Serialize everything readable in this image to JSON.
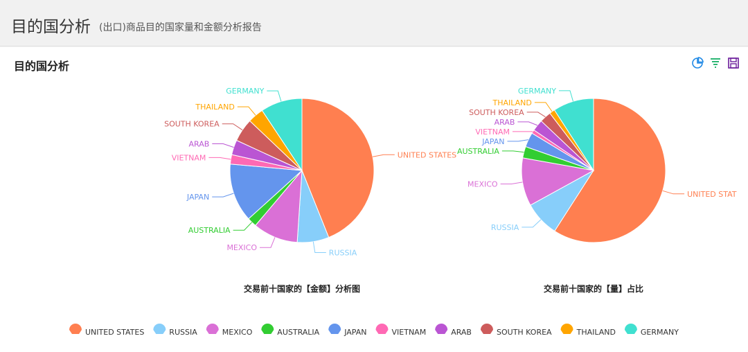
{
  "header": {
    "title": "目的国分析",
    "subtitle": "(出口)商品目的国家量和金额分析报告"
  },
  "panel": {
    "title": "目的国分析",
    "toolbar": [
      {
        "icon": "pie-chart-icon",
        "color": "#1e88e5"
      },
      {
        "icon": "filter-icon",
        "color": "#2bb673"
      },
      {
        "icon": "save-icon",
        "color": "#6a1b9a"
      }
    ]
  },
  "colors": {
    "UNITED STATES": "#ff7f50",
    "RUSSIA": "#87cefa",
    "MEXICO": "#da70d6",
    "AUSTRALIA": "#32cd32",
    "JAPAN": "#6495ed",
    "VIETNAM": "#ff69b4",
    "ARAB": "#ba55d3",
    "SOUTH KOREA": "#cd5c5c",
    "THAILAND": "#ffa500",
    "GERMANY": "#40e0d0"
  },
  "chart_data": [
    {
      "type": "pie",
      "title": "交易前十国家的【金额】分析图",
      "categories": [
        "UNITED STATES",
        "RUSSIA",
        "MEXICO",
        "AUSTRALIA",
        "JAPAN",
        "VIETNAM",
        "ARAB",
        "SOUTH KOREA",
        "THAILAND",
        "GERMANY"
      ],
      "values": [
        39.5,
        6.4,
        9.1,
        1.9,
        11.8,
        1.9,
        3.0,
        4.7,
        3.2,
        8.4
      ],
      "labels": [
        "UNITED STATES",
        "RUSSIA",
        "MEXICO",
        "AUSTRALIA",
        "JAPAN",
        "VIETNAM",
        "ARAB",
        "SOUTH KOREA",
        "THAILAND",
        "GERMANY"
      ]
    },
    {
      "type": "pie",
      "title": "交易前十国家的【量】占比",
      "categories": [
        "UNITED STATES",
        "RUSSIA",
        "MEXICO",
        "AUSTRALIA",
        "JAPAN",
        "VIETNAM",
        "ARAB",
        "SOUTH KOREA",
        "THAILAND",
        "GERMANY"
      ],
      "values": [
        57.5,
        7.7,
        10.5,
        2.5,
        3.2,
        0.8,
        2.5,
        2.5,
        1.2,
        8.9
      ],
      "labels": [
        "UNITED STAT",
        "RUSSIA",
        "MEXICO",
        "AUSTRALIA",
        "JAPAN",
        "VIETNAM",
        "ARAB",
        "SOUTH KOREA",
        "THAILAND",
        "GERMANY"
      ]
    }
  ],
  "legend": [
    "UNITED STATES",
    "RUSSIA",
    "MEXICO",
    "AUSTRALIA",
    "JAPAN",
    "VIETNAM",
    "ARAB",
    "SOUTH KOREA",
    "THAILAND",
    "GERMANY"
  ]
}
